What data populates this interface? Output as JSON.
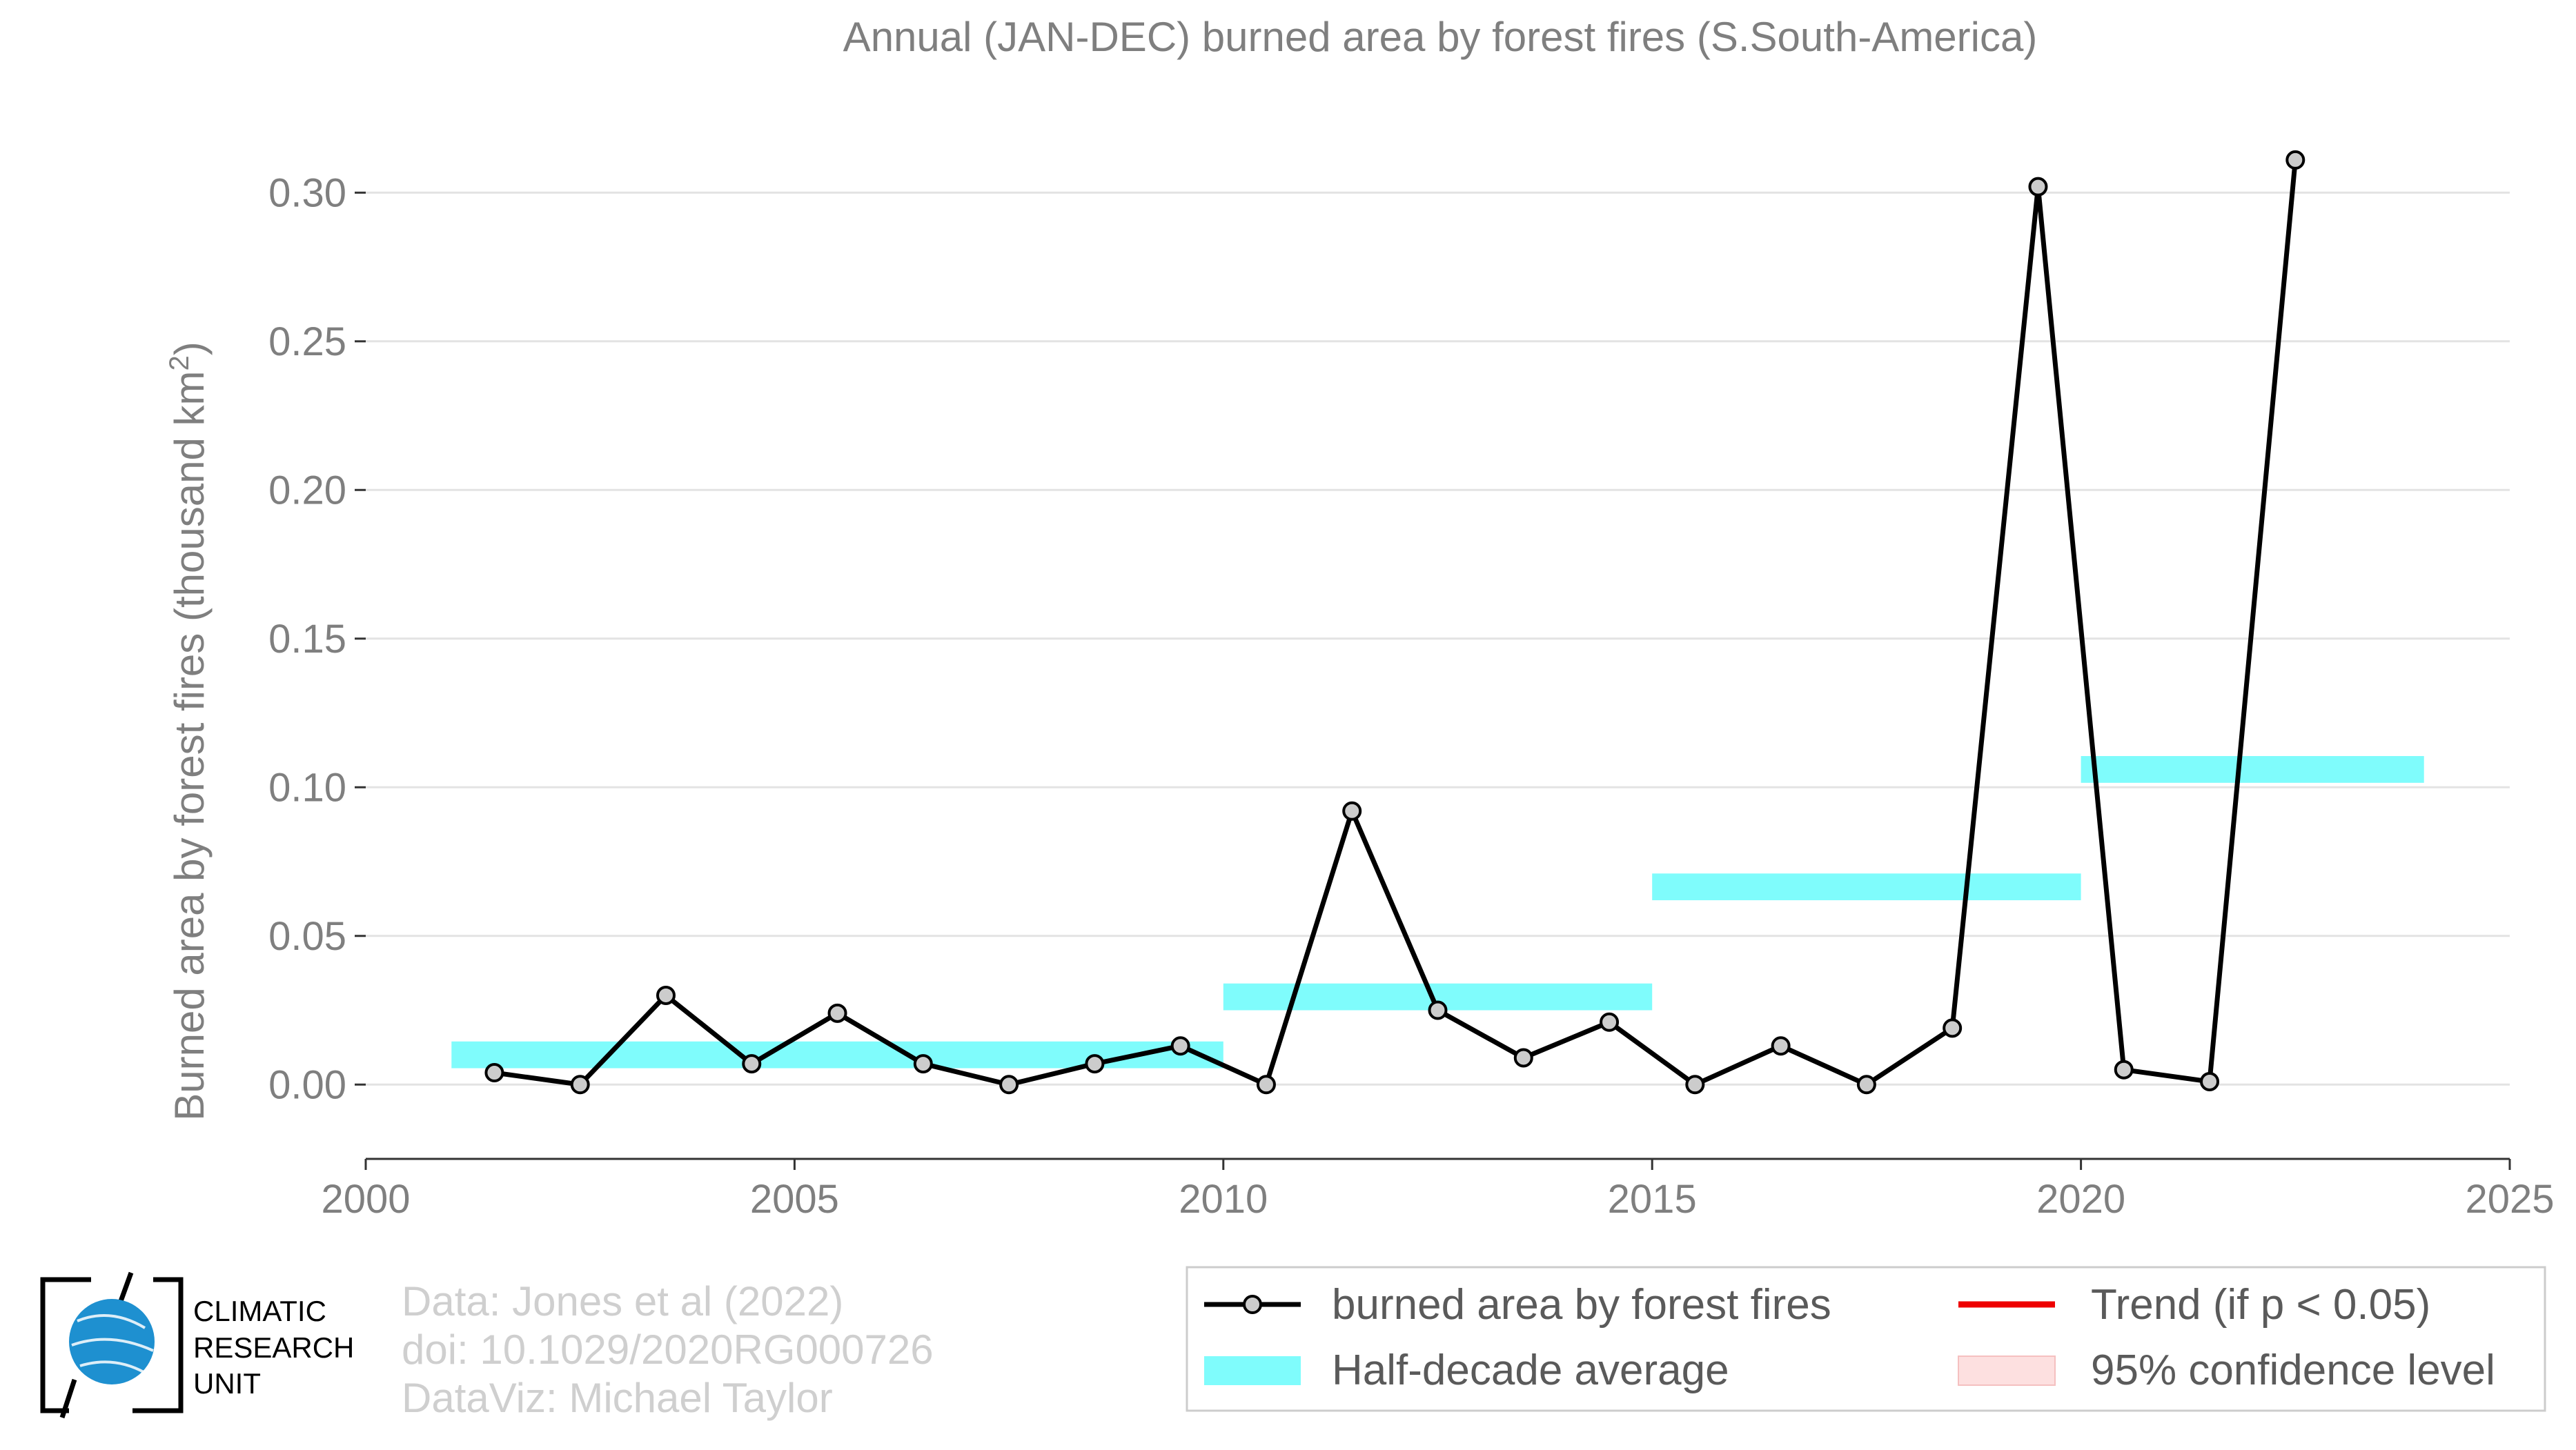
{
  "chart_data": {
    "type": "line",
    "title": "Annual (JAN-DEC) burned area by forest fires (S.South-America)",
    "ylabel_main": "Burned area by forest fires (thousand km",
    "ylabel_sup": "2",
    "ylabel_close": ")",
    "xlim": [
      2000,
      2025
    ],
    "ylim": [
      -0.025,
      0.33
    ],
    "x_ticks": [
      2000,
      2005,
      2010,
      2015,
      2020,
      2025
    ],
    "y_ticks": [
      0.0,
      0.05,
      0.1,
      0.15,
      0.2,
      0.25,
      0.3
    ],
    "y_tick_labels": [
      "0.00",
      "0.05",
      "0.10",
      "0.15",
      "0.20",
      "0.25",
      "0.30"
    ],
    "grid": "horizontal",
    "series": [
      {
        "name": "burned area by forest fires",
        "color": "#000000",
        "marker_fill": "#cccccc",
        "x": [
          2001.5,
          2002.5,
          2003.5,
          2004.5,
          2005.5,
          2006.5,
          2007.5,
          2008.5,
          2009.5,
          2010.5,
          2011.5,
          2012.5,
          2013.5,
          2014.5,
          2015.5,
          2016.5,
          2017.5,
          2018.5,
          2019.5,
          2020.5,
          2021.5,
          2022.5
        ],
        "values": [
          0.004,
          0.0,
          0.03,
          0.007,
          0.024,
          0.007,
          0.0,
          0.007,
          0.013,
          0.0,
          0.092,
          0.025,
          0.009,
          0.021,
          0.0,
          0.013,
          0.0,
          0.019,
          0.302,
          0.005,
          0.001,
          0.311
        ]
      }
    ],
    "half_decade_average": {
      "name": "Half-decade average",
      "color": "#7ffcfc",
      "segments": [
        {
          "x0": 2001,
          "x1": 2010,
          "value": 0.01
        },
        {
          "x0": 2010,
          "x1": 2015,
          "value": 0.0295
        },
        {
          "x0": 2015,
          "x1": 2020,
          "value": 0.0665
        },
        {
          "x0": 2020,
          "x1": 2024,
          "value": 0.106
        }
      ]
    },
    "legend": {
      "placement": "bottom-right",
      "items": [
        {
          "label": "burned area by forest fires",
          "kind": "line-marker",
          "color": "#000000"
        },
        {
          "label": "Trend (if p < 0.05)",
          "kind": "line",
          "color": "#ee0000"
        },
        {
          "label": "Half-decade average",
          "kind": "band",
          "color": "#7ffcfc"
        },
        {
          "label": "95% confidence level",
          "kind": "band",
          "color": "#fde0e0"
        }
      ]
    }
  },
  "credits": {
    "line1": "Data: Jones et al (2022)",
    "line2": "doi: 10.1029/2020RG000726",
    "line3": "DataViz: Michael Taylor"
  },
  "logo": {
    "line1": "CLIMATIC",
    "line2": "RESEARCH",
    "line3": "UNIT",
    "globe_color": "#1e90d0"
  }
}
